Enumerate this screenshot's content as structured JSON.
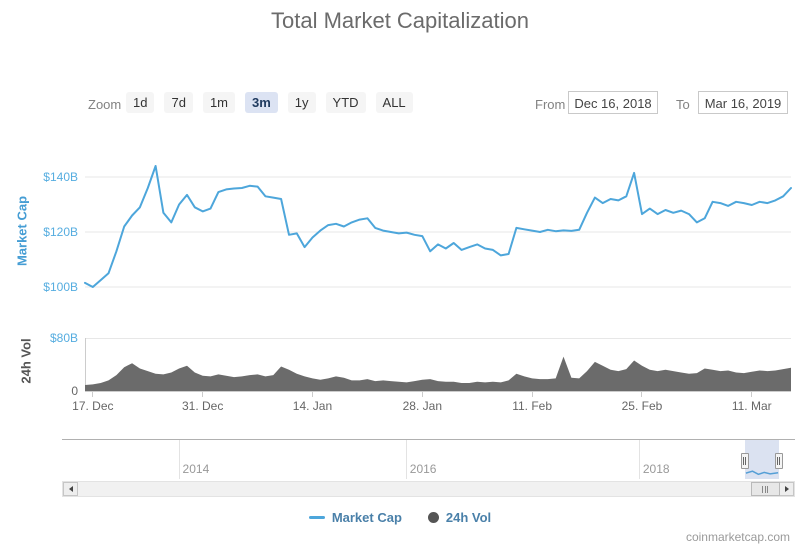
{
  "title": "Total Market Capitalization",
  "watermark": "coinmarketcap.com",
  "colors": {
    "line": "#4da6db",
    "volume": "#6b6b6b",
    "grid": "#e7e7e7",
    "axis_line": "#cccccc",
    "axis_label_blue": "#56ade0",
    "selected_button_bg": "#dce3f3"
  },
  "toolbar": {
    "zoom_label": "Zoom",
    "buttons": [
      {
        "label": "1d",
        "selected": false
      },
      {
        "label": "7d",
        "selected": false
      },
      {
        "label": "1m",
        "selected": false
      },
      {
        "label": "3m",
        "selected": true
      },
      {
        "label": "1y",
        "selected": false
      },
      {
        "label": "YTD",
        "selected": false
      },
      {
        "label": "ALL",
        "selected": false
      }
    ],
    "from_label": "From",
    "from_value": "Dec 16, 2018",
    "to_label": "To",
    "to_value": "Mar 16, 2019"
  },
  "legend": {
    "items": [
      {
        "label": "Market Cap",
        "symbol": "line",
        "color": "#4da6db"
      },
      {
        "label": "24h Vol",
        "symbol": "circle",
        "color": "#555555"
      }
    ]
  },
  "chart_data": {
    "type": "line",
    "title": "Total Market Capitalization",
    "x_start": "Dec 16, 2018",
    "x_end": "Mar 16, 2019",
    "x_ticks": [
      {
        "label": "17. Dec",
        "f": 0.0111
      },
      {
        "label": "31. Dec",
        "f": 0.1667
      },
      {
        "label": "14. Jan",
        "f": 0.3222
      },
      {
        "label": "28. Jan",
        "f": 0.4778
      },
      {
        "label": "11. Feb",
        "f": 0.6333
      },
      {
        "label": "25. Feb",
        "f": 0.7889
      },
      {
        "label": "11. Mar",
        "f": 0.9444
      }
    ],
    "market_cap": {
      "name": "Market Cap",
      "unit": "$B",
      "color": "#4da6db",
      "axis_values": [
        140,
        120,
        100
      ],
      "axis_ticks": [
        "$140B",
        "$120B",
        "$100B"
      ],
      "ylim": [
        98,
        146
      ],
      "values": [
        101.5,
        100,
        102.5,
        105,
        113,
        122,
        126,
        129,
        136,
        144,
        127,
        123.5,
        130,
        133.5,
        129,
        127.5,
        128.5,
        134.5,
        135.5,
        135.8,
        136,
        136.8,
        136.5,
        133,
        132.5,
        132,
        119,
        119.5,
        114.5,
        118,
        120.5,
        122.5,
        123,
        122,
        123.5,
        124.5,
        125,
        121.5,
        120.5,
        120,
        119.5,
        119.8,
        119,
        118.5,
        113,
        115.5,
        114,
        116,
        113.5,
        114.5,
        115.5,
        114,
        113.5,
        111.5,
        112,
        121.5,
        121,
        120.5,
        120,
        120.8,
        120.3,
        120.6,
        120.4,
        120.8,
        127,
        132.5,
        130.5,
        132,
        131.5,
        133,
        141.5,
        126.5,
        128.5,
        126.5,
        128,
        127,
        127.8,
        126.5,
        123.5,
        125,
        131,
        130.5,
        129.5,
        131,
        130.5,
        129.8,
        131,
        130.5,
        131.5,
        133,
        136
      ]
    },
    "volume_24h": {
      "name": "24h Vol",
      "unit": "$B",
      "color": "#6b6b6b",
      "axis_ticks": [
        {
          "label": "$80B",
          "value": 80
        },
        {
          "label": "0",
          "value": 0
        }
      ],
      "ylim": [
        0,
        80
      ],
      "values": [
        9,
        10,
        12,
        16,
        24,
        36,
        42,
        34,
        30,
        26,
        25,
        28,
        34,
        38,
        28,
        23,
        22,
        25,
        23,
        21,
        22,
        24,
        25,
        22,
        24,
        37,
        32,
        26,
        22,
        19,
        17,
        19,
        22,
        20,
        16,
        16,
        18,
        15,
        16,
        15,
        14,
        13,
        15,
        17,
        18,
        15,
        14,
        14,
        12,
        12,
        14,
        13,
        14,
        13,
        16,
        26,
        22,
        19,
        18,
        18,
        19,
        52,
        20,
        19,
        30,
        44,
        38,
        32,
        30,
        33,
        46,
        38,
        32,
        30,
        32,
        30,
        28,
        26,
        27,
        34,
        32,
        30,
        31,
        28,
        27,
        29,
        31,
        30,
        31,
        33,
        35
      ]
    }
  },
  "navigator": {
    "years": [
      {
        "label": "2014",
        "f": 0.159
      },
      {
        "label": "2016",
        "f": 0.469
      },
      {
        "label": "2018",
        "f": 0.787
      }
    ],
    "selection": {
      "from_f": 0.932,
      "to_f": 0.978
    },
    "preview_points": [
      [
        0.933,
        0.85
      ],
      [
        0.942,
        0.8
      ],
      [
        0.95,
        0.88
      ],
      [
        0.958,
        0.83
      ],
      [
        0.966,
        0.87
      ],
      [
        0.977,
        0.84
      ]
    ],
    "scrollbar": {
      "thumb_from_f": 0.938,
      "thumb_to_f": 0.978
    }
  }
}
